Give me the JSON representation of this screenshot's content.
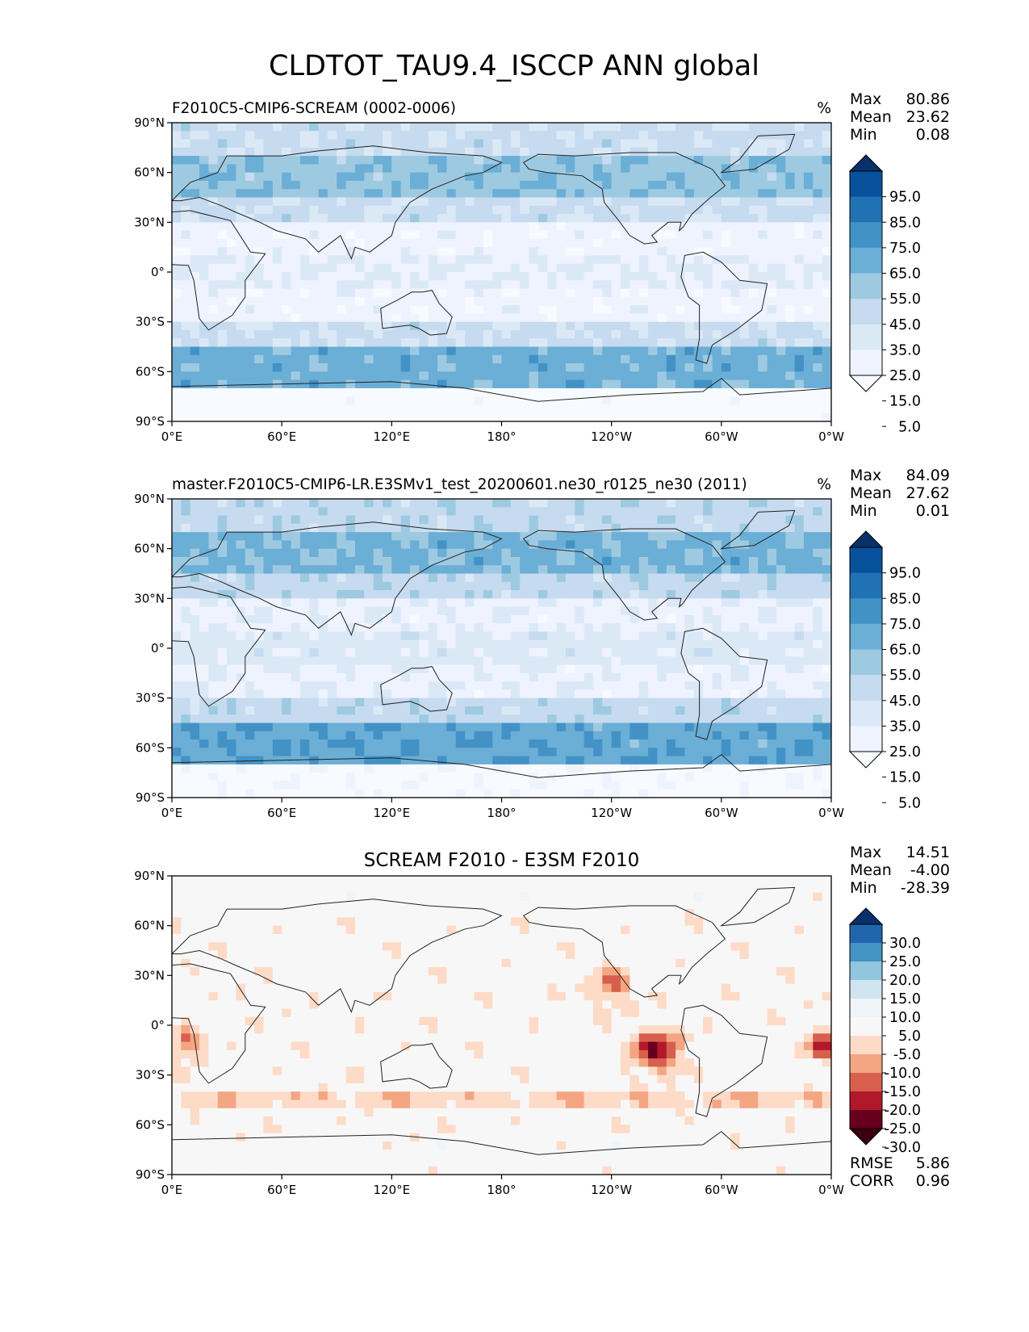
{
  "figure": {
    "title": "CLDTOT_TAU9.4_ISCCP ANN global"
  },
  "chart_data": [
    {
      "type": "heatmap",
      "title": "F2010C5-CMIP6-SCREAM (0002-0006)",
      "units": "%",
      "stats": [
        {
          "label": "Max",
          "value": "80.86"
        },
        {
          "label": "Mean",
          "value": "23.62"
        },
        {
          "label": "Min",
          "value": "0.08"
        }
      ],
      "x_ticks": [
        "0°E",
        "60°E",
        "120°E",
        "180°",
        "120°W",
        "60°W",
        "0°W"
      ],
      "y_ticks": [
        "90°N",
        "60°N",
        "30°N",
        "0°",
        "30°S",
        "60°S",
        "90°S"
      ],
      "xlim": [
        0,
        360
      ],
      "ylim": [
        -90,
        90
      ],
      "colorbar": {
        "labels": [
          "95.0",
          "85.0",
          "75.0",
          "65.0",
          "55.0",
          "45.0",
          "35.0",
          "25.0",
          "15.0",
          "5.0"
        ],
        "colors": [
          "#08306b",
          "#08519c",
          "#2171b5",
          "#4292c6",
          "#6baed6",
          "#9ecae1",
          "#c6dbef",
          "#dbe9f6",
          "#eff3ff",
          "#f7fbff"
        ],
        "extend": "both"
      }
    },
    {
      "type": "heatmap",
      "title": "master.F2010C5-CMIP6-LR.E3SMv1_test_20200601.ne30_r0125_ne30 (2011)",
      "units": "%",
      "stats": [
        {
          "label": "Max",
          "value": "84.09"
        },
        {
          "label": "Mean",
          "value": "27.62"
        },
        {
          "label": "Min",
          "value": "0.01"
        }
      ],
      "x_ticks": [
        "0°E",
        "60°E",
        "120°E",
        "180°",
        "120°W",
        "60°W",
        "0°W"
      ],
      "y_ticks": [
        "90°N",
        "60°N",
        "30°N",
        "0°",
        "30°S",
        "60°S",
        "90°S"
      ],
      "xlim": [
        0,
        360
      ],
      "ylim": [
        -90,
        90
      ],
      "colorbar": {
        "labels": [
          "95.0",
          "85.0",
          "75.0",
          "65.0",
          "55.0",
          "45.0",
          "35.0",
          "25.0",
          "15.0",
          "5.0"
        ],
        "colors": [
          "#08306b",
          "#08519c",
          "#2171b5",
          "#4292c6",
          "#6baed6",
          "#9ecae1",
          "#c6dbef",
          "#dbe9f6",
          "#eff3ff",
          "#f7fbff"
        ],
        "extend": "both"
      }
    },
    {
      "type": "heatmap",
      "title": "SCREAM F2010 - E3SM F2010",
      "units": "",
      "stats": [
        {
          "label": "Max",
          "value": "14.51"
        },
        {
          "label": "Mean",
          "value": "-4.00"
        },
        {
          "label": "Min",
          "value": "-28.39"
        }
      ],
      "extra_stats": [
        {
          "label": "RMSE",
          "value": "5.86"
        },
        {
          "label": "CORR",
          "value": "0.96"
        }
      ],
      "x_ticks": [
        "0°E",
        "60°E",
        "120°E",
        "180°",
        "120°W",
        "60°W",
        "0°W"
      ],
      "y_ticks": [
        "90°N",
        "60°N",
        "30°N",
        "0°",
        "30°S",
        "60°S",
        "90°S"
      ],
      "xlim": [
        0,
        360
      ],
      "ylim": [
        -90,
        90
      ],
      "colorbar": {
        "labels": [
          "30.0",
          "25.0",
          "20.0",
          "15.0",
          "10.0",
          "5.0",
          "-5.0",
          "-10.0",
          "-15.0",
          "-20.0",
          "-25.0",
          "-30.0"
        ],
        "colors": [
          "#08306b",
          "#2166ac",
          "#4393c3",
          "#92c5de",
          "#d1e5f0",
          "#eef4f8",
          "#f7f7f7",
          "#fddbc7",
          "#f4a582",
          "#d6604d",
          "#b2182b",
          "#67001f",
          "#3a0010"
        ],
        "extend": "both"
      }
    }
  ]
}
